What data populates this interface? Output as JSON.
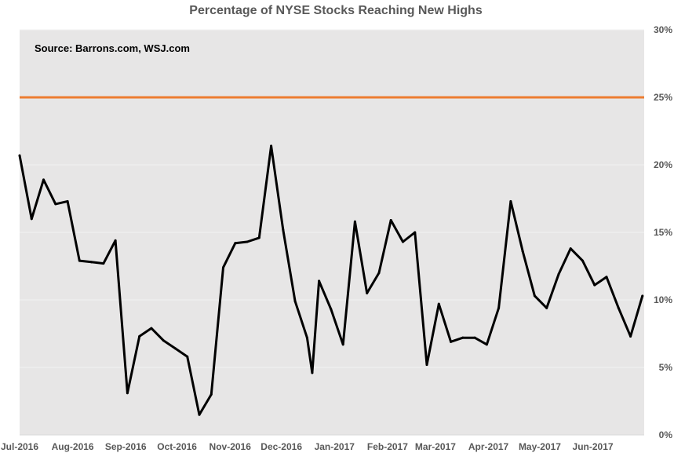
{
  "chart_data": {
    "type": "line",
    "title": "Percentage of NYSE Stocks Reaching New Highs",
    "annotation": "Source: Barrons.com, WSJ.com",
    "xlabel": "",
    "ylabel": "",
    "ylim": [
      0,
      30
    ],
    "y_ticks": [
      "0%",
      "5%",
      "10%",
      "15%",
      "20%",
      "25%",
      "30%"
    ],
    "y_axis_position": "right",
    "grid": true,
    "x_ticks": [
      "Jul-2016",
      "Aug-2016",
      "Sep-2016",
      "Oct-2016",
      "Nov-2016",
      "Dec-2016",
      "Jan-2017",
      "Feb-2017",
      "Mar-2017",
      "Apr-2017",
      "May-2017",
      "Jun-2017"
    ],
    "reference_line": {
      "value": 25,
      "color": "#ED7D31"
    },
    "series": [
      {
        "color": "#000000",
        "points": [
          [
            "2016-07-01",
            20.7
          ],
          [
            "2016-07-08",
            16.0
          ],
          [
            "2016-07-15",
            18.9
          ],
          [
            "2016-07-22",
            17.1
          ],
          [
            "2016-07-29",
            17.3
          ],
          [
            "2016-08-05",
            12.9
          ],
          [
            "2016-08-12",
            12.8
          ],
          [
            "2016-08-19",
            12.7
          ],
          [
            "2016-08-26",
            14.4
          ],
          [
            "2016-09-02",
            3.1
          ],
          [
            "2016-09-09",
            7.3
          ],
          [
            "2016-09-16",
            7.9
          ],
          [
            "2016-09-23",
            7.0
          ],
          [
            "2016-09-30",
            6.4
          ],
          [
            "2016-10-07",
            5.8
          ],
          [
            "2016-10-14",
            1.5
          ],
          [
            "2016-10-21",
            3.0
          ],
          [
            "2016-10-28",
            12.4
          ],
          [
            "2016-11-04",
            14.2
          ],
          [
            "2016-11-11",
            14.3
          ],
          [
            "2016-11-18",
            14.6
          ],
          [
            "2016-11-25",
            21.4
          ],
          [
            "2016-12-02",
            15.2
          ],
          [
            "2016-12-09",
            9.9
          ],
          [
            "2016-12-16",
            7.2
          ],
          [
            "2016-12-19",
            4.6
          ],
          [
            "2016-12-23",
            11.4
          ],
          [
            "2016-12-30",
            9.3
          ],
          [
            "2017-01-06",
            6.7
          ],
          [
            "2017-01-13",
            15.8
          ],
          [
            "2017-01-20",
            10.5
          ],
          [
            "2017-01-27",
            12.0
          ],
          [
            "2017-02-03",
            15.9
          ],
          [
            "2017-02-10",
            14.3
          ],
          [
            "2017-02-17",
            15.0
          ],
          [
            "2017-02-24",
            5.2
          ],
          [
            "2017-03-03",
            9.7
          ],
          [
            "2017-03-10",
            6.9
          ],
          [
            "2017-03-17",
            7.2
          ],
          [
            "2017-03-24",
            7.2
          ],
          [
            "2017-03-31",
            6.7
          ],
          [
            "2017-04-07",
            9.4
          ],
          [
            "2017-04-14",
            17.3
          ],
          [
            "2017-04-21",
            13.6
          ],
          [
            "2017-04-28",
            10.3
          ],
          [
            "2017-05-05",
            9.4
          ],
          [
            "2017-05-12",
            11.9
          ],
          [
            "2017-05-19",
            13.8
          ],
          [
            "2017-05-26",
            12.9
          ],
          [
            "2017-06-02",
            11.1
          ],
          [
            "2017-06-09",
            11.7
          ],
          [
            "2017-06-16",
            9.4
          ],
          [
            "2017-06-23",
            7.3
          ],
          [
            "2017-06-30",
            10.3
          ]
        ]
      }
    ]
  },
  "colors": {
    "plot_background": "#E7E6E6",
    "gridline": "#F2F2F2",
    "line": "#000000",
    "reference": "#ED7D31",
    "text": "#595959"
  }
}
